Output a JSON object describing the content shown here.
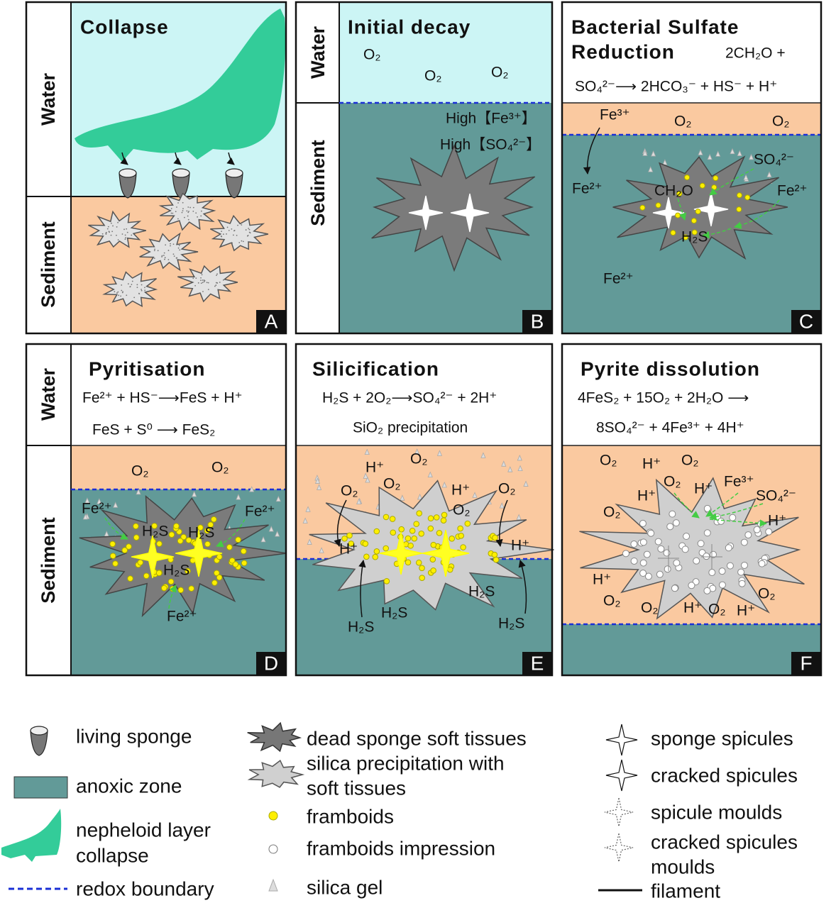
{
  "panels": [
    {
      "letter": "A",
      "title": [
        "Collapse"
      ],
      "side_labels": [
        "Water",
        "Sediment"
      ],
      "equations": [],
      "labels": []
    },
    {
      "letter": "B",
      "title": [
        "Initial decay"
      ],
      "side_labels": [
        "Water",
        "Sediment"
      ],
      "equations": [],
      "labels": [
        "O₂",
        "O₂",
        "O₂",
        "High【Fe³⁺】",
        "High【SO₄²⁻】"
      ]
    },
    {
      "letter": "C",
      "title": [
        "Bacterial Sulfate",
        "Reduction"
      ],
      "equations": [
        "2CH₂O +",
        "SO₄²⁻⟶ 2HCO₃⁻ + HS⁻ + H⁺"
      ],
      "labels": [
        "Fe³⁺",
        "O₂",
        "O₂",
        "Fe²⁺",
        "CH₂O",
        "SO₄²⁻",
        "Fe²⁺",
        "H₂S",
        "Fe²⁺"
      ]
    },
    {
      "letter": "D",
      "title": [
        "Pyritisation"
      ],
      "side_labels": [
        "Water",
        "Sediment"
      ],
      "equations": [
        "Fe²⁺ + HS⁻⟶FeS + H⁺",
        "FeS + S⁰ ⟶  FeS₂"
      ],
      "labels": [
        "O₂",
        "O₂",
        "Fe²⁺",
        "Fe²⁺",
        "H₂S",
        "H₂S",
        "H₂S",
        "Fe²⁺"
      ]
    },
    {
      "letter": "E",
      "title": [
        "Silicification"
      ],
      "equations": [
        "H₂S + 2O₂⟶SO₄²⁻ + 2H⁺",
        "SiO₂ precipitation"
      ],
      "labels": [
        "H⁺",
        "O₂",
        "O₂",
        "H⁺",
        "O₂",
        "O₂",
        "O₂",
        "H⁺",
        "H⁺",
        "H₂S",
        "H₂S",
        "H₂S",
        "H₂S"
      ]
    },
    {
      "letter": "F",
      "title": [
        "Pyrite dissolution"
      ],
      "equations": [
        "4FeS₂ + 15O₂ + 2H₂O  ⟶",
        "8SO₄²⁻ + 4Fe³⁺ + 4H⁺"
      ],
      "labels": [
        "O₂",
        "H⁺",
        "O₂",
        "O₂",
        "H⁺",
        "Fe³⁺",
        "SO₄²⁻",
        "H⁺",
        "O₂",
        "H⁺",
        "H⁺",
        "O₂",
        "O₂",
        "H⁺",
        "O₂",
        "H⁺",
        "O₂"
      ]
    }
  ],
  "legend": [
    [
      "living sponge"
    ],
    [
      "anoxic zone"
    ],
    [
      "nepheloid layer",
      "collapse"
    ],
    [
      "redox boundary"
    ],
    [
      "dead sponge soft tissues"
    ],
    [
      "silica precipitation with",
      "soft tissues"
    ],
    [
      "framboids"
    ],
    [
      "framboids impression"
    ],
    [
      "silica gel"
    ],
    [
      "sponge spicules"
    ],
    [
      "cracked spicules"
    ],
    [
      "spicule moulds"
    ],
    [
      "cracked spicules",
      "moulds"
    ],
    [
      "filament"
    ]
  ]
}
